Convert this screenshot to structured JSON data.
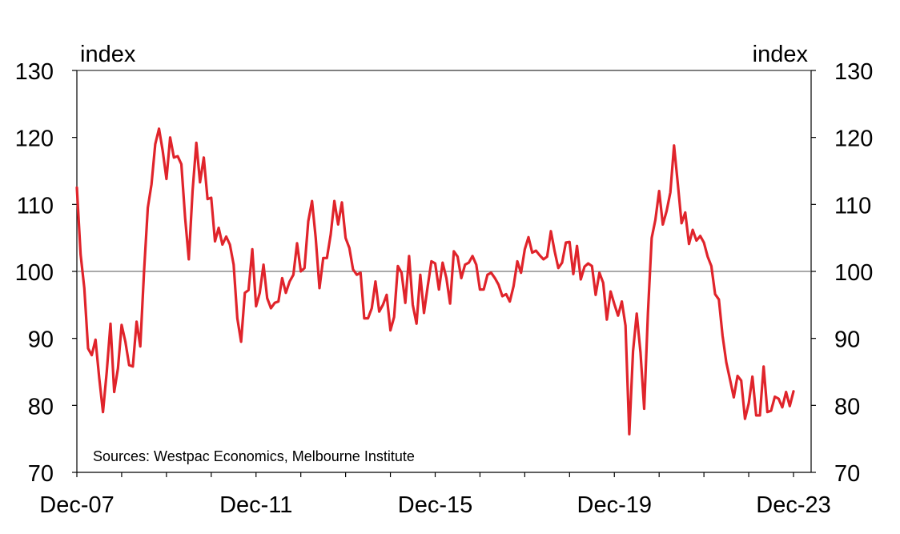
{
  "chart_data": {
    "type": "line",
    "title": "",
    "xlabel": "",
    "ylabel": "index",
    "ylabel_right": "index",
    "ylim": [
      70,
      130
    ],
    "yticks": [
      70,
      80,
      90,
      100,
      110,
      120,
      130
    ],
    "xlim": [
      "2007-12",
      "2023-12"
    ],
    "xticks": [
      {
        "date": "2007-12",
        "label": "Dec-07"
      },
      {
        "date": "2011-12",
        "label": "Dec-11"
      },
      {
        "date": "2015-12",
        "label": "Dec-15"
      },
      {
        "date": "2019-12",
        "label": "Dec-19"
      },
      {
        "date": "2023-12",
        "label": "Dec-23"
      }
    ],
    "reference_line": 100,
    "grid": false,
    "source_note": "Sources: Westpac Economics, Melbourne Institute",
    "colors": {
      "series": "#e0242b",
      "axis": "#000000",
      "reference": "#555555"
    },
    "series": [
      {
        "name": "",
        "points": [
          [
            "2007-12",
            112.5
          ],
          [
            "2008-01",
            102.5
          ],
          [
            "2008-02",
            97.5
          ],
          [
            "2008-03",
            88.5
          ],
          [
            "2008-04",
            87.5
          ],
          [
            "2008-05",
            89.8
          ],
          [
            "2008-06",
            84.0
          ],
          [
            "2008-07",
            79.0
          ],
          [
            "2008-08",
            85.0
          ],
          [
            "2008-09",
            92.2
          ],
          [
            "2008-10",
            82.0
          ],
          [
            "2008-11",
            85.5
          ],
          [
            "2008-12",
            92.0
          ],
          [
            "2009-01",
            89.5
          ],
          [
            "2009-02",
            86.0
          ],
          [
            "2009-03",
            85.8
          ],
          [
            "2009-04",
            92.5
          ],
          [
            "2009-05",
            88.8
          ],
          [
            "2009-06",
            100.0
          ],
          [
            "2009-07",
            109.5
          ],
          [
            "2009-08",
            113.0
          ],
          [
            "2009-09",
            119.0
          ],
          [
            "2009-10",
            121.3
          ],
          [
            "2009-11",
            118.0
          ],
          [
            "2009-12",
            113.8
          ],
          [
            "2010-01",
            120.0
          ],
          [
            "2010-02",
            117.0
          ],
          [
            "2010-03",
            117.2
          ],
          [
            "2010-04",
            116.0
          ],
          [
            "2010-05",
            108.0
          ],
          [
            "2010-06",
            101.8
          ],
          [
            "2010-07",
            112.0
          ],
          [
            "2010-08",
            119.2
          ],
          [
            "2010-09",
            113.3
          ],
          [
            "2010-10",
            117.0
          ],
          [
            "2010-11",
            110.8
          ],
          [
            "2010-12",
            111.0
          ],
          [
            "2011-01",
            104.5
          ],
          [
            "2011-02",
            106.5
          ],
          [
            "2011-03",
            104.0
          ],
          [
            "2011-04",
            105.2
          ],
          [
            "2011-05",
            104.0
          ],
          [
            "2011-06",
            101.0
          ],
          [
            "2011-07",
            93.0
          ],
          [
            "2011-08",
            89.5
          ],
          [
            "2011-09",
            96.8
          ],
          [
            "2011-10",
            97.2
          ],
          [
            "2011-11",
            103.3
          ],
          [
            "2011-12",
            94.8
          ],
          [
            "2012-01",
            96.8
          ],
          [
            "2012-02",
            101.0
          ],
          [
            "2012-03",
            96.0
          ],
          [
            "2012-04",
            94.5
          ],
          [
            "2012-05",
            95.3
          ],
          [
            "2012-06",
            95.5
          ],
          [
            "2012-07",
            99.0
          ],
          [
            "2012-08",
            96.8
          ],
          [
            "2012-09",
            98.5
          ],
          [
            "2012-10",
            99.5
          ],
          [
            "2012-11",
            104.2
          ],
          [
            "2012-12",
            100.0
          ],
          [
            "2013-01",
            100.5
          ],
          [
            "2013-02",
            107.5
          ],
          [
            "2013-03",
            110.5
          ],
          [
            "2013-04",
            105.0
          ],
          [
            "2013-05",
            97.5
          ],
          [
            "2013-06",
            102.0
          ],
          [
            "2013-07",
            102.0
          ],
          [
            "2013-08",
            105.5
          ],
          [
            "2013-09",
            110.5
          ],
          [
            "2013-10",
            107.0
          ],
          [
            "2013-11",
            110.3
          ],
          [
            "2013-12",
            105.0
          ],
          [
            "2014-01",
            103.5
          ],
          [
            "2014-02",
            100.3
          ],
          [
            "2014-03",
            99.5
          ],
          [
            "2014-04",
            99.8
          ],
          [
            "2014-05",
            93.0
          ],
          [
            "2014-06",
            93.0
          ],
          [
            "2014-07",
            94.5
          ],
          [
            "2014-08",
            98.5
          ],
          [
            "2014-09",
            94.0
          ],
          [
            "2014-10",
            95.0
          ],
          [
            "2014-11",
            96.5
          ],
          [
            "2014-12",
            91.2
          ],
          [
            "2015-01",
            93.2
          ],
          [
            "2015-02",
            100.8
          ],
          [
            "2015-03",
            99.8
          ],
          [
            "2015-04",
            95.3
          ],
          [
            "2015-05",
            102.3
          ],
          [
            "2015-06",
            95.0
          ],
          [
            "2015-07",
            92.2
          ],
          [
            "2015-08",
            99.5
          ],
          [
            "2015-09",
            93.8
          ],
          [
            "2015-10",
            97.8
          ],
          [
            "2015-11",
            101.5
          ],
          [
            "2015-12",
            101.2
          ],
          [
            "2016-01",
            97.3
          ],
          [
            "2016-02",
            101.3
          ],
          [
            "2016-03",
            99.0
          ],
          [
            "2016-04",
            95.2
          ],
          [
            "2016-05",
            103.0
          ],
          [
            "2016-06",
            102.2
          ],
          [
            "2016-07",
            99.0
          ],
          [
            "2016-08",
            101.0
          ],
          [
            "2016-09",
            101.3
          ],
          [
            "2016-10",
            102.3
          ],
          [
            "2016-11",
            101.0
          ],
          [
            "2016-12",
            97.3
          ],
          [
            "2017-01",
            97.3
          ],
          [
            "2017-02",
            99.5
          ],
          [
            "2017-03",
            99.8
          ],
          [
            "2017-04",
            99.0
          ],
          [
            "2017-05",
            98.0
          ],
          [
            "2017-06",
            96.3
          ],
          [
            "2017-07",
            96.6
          ],
          [
            "2017-08",
            95.5
          ],
          [
            "2017-09",
            97.8
          ],
          [
            "2017-10",
            101.5
          ],
          [
            "2017-11",
            99.8
          ],
          [
            "2017-12",
            103.3
          ],
          [
            "2018-01",
            105.1
          ],
          [
            "2018-02",
            102.8
          ],
          [
            "2018-03",
            103.1
          ],
          [
            "2018-04",
            102.4
          ],
          [
            "2018-05",
            101.8
          ],
          [
            "2018-06",
            102.2
          ],
          [
            "2018-07",
            106.0
          ],
          [
            "2018-08",
            103.0
          ],
          [
            "2018-09",
            100.5
          ],
          [
            "2018-10",
            101.3
          ],
          [
            "2018-11",
            104.3
          ],
          [
            "2018-12",
            104.4
          ],
          [
            "2019-01",
            99.6
          ],
          [
            "2019-02",
            103.8
          ],
          [
            "2019-03",
            98.8
          ],
          [
            "2019-04",
            100.7
          ],
          [
            "2019-05",
            101.2
          ],
          [
            "2019-06",
            100.8
          ],
          [
            "2019-07",
            96.5
          ],
          [
            "2019-08",
            99.8
          ],
          [
            "2019-09",
            98.3
          ],
          [
            "2019-10",
            92.8
          ],
          [
            "2019-11",
            97.0
          ],
          [
            "2019-12",
            95.1
          ],
          [
            "2020-01",
            93.4
          ],
          [
            "2020-02",
            95.5
          ],
          [
            "2020-03",
            91.9
          ],
          [
            "2020-04",
            75.7
          ],
          [
            "2020-05",
            88.1
          ],
          [
            "2020-06",
            93.7
          ],
          [
            "2020-07",
            87.9
          ],
          [
            "2020-08",
            79.5
          ],
          [
            "2020-09",
            93.8
          ],
          [
            "2020-10",
            105.0
          ],
          [
            "2020-11",
            107.7
          ],
          [
            "2020-12",
            112.0
          ],
          [
            "2021-01",
            107.0
          ],
          [
            "2021-02",
            109.0
          ],
          [
            "2021-03",
            111.8
          ],
          [
            "2021-04",
            118.8
          ],
          [
            "2021-05",
            113.1
          ],
          [
            "2021-06",
            107.2
          ],
          [
            "2021-07",
            108.8
          ],
          [
            "2021-08",
            104.1
          ],
          [
            "2021-09",
            106.2
          ],
          [
            "2021-10",
            104.6
          ],
          [
            "2021-11",
            105.3
          ],
          [
            "2021-12",
            104.3
          ],
          [
            "2022-01",
            102.2
          ],
          [
            "2022-02",
            100.8
          ],
          [
            "2022-03",
            96.6
          ],
          [
            "2022-04",
            95.8
          ],
          [
            "2022-05",
            90.4
          ],
          [
            "2022-06",
            86.4
          ],
          [
            "2022-07",
            83.8
          ],
          [
            "2022-08",
            81.2
          ],
          [
            "2022-09",
            84.4
          ],
          [
            "2022-10",
            83.7
          ],
          [
            "2022-11",
            78.0
          ],
          [
            "2022-12",
            80.3
          ],
          [
            "2023-01",
            84.3
          ],
          [
            "2023-02",
            78.5
          ],
          [
            "2023-03",
            78.5
          ],
          [
            "2023-04",
            85.8
          ],
          [
            "2023-05",
            79.0
          ],
          [
            "2023-06",
            79.2
          ],
          [
            "2023-07",
            81.3
          ],
          [
            "2023-08",
            81.0
          ],
          [
            "2023-09",
            79.7
          ],
          [
            "2023-10",
            82.0
          ],
          [
            "2023-11",
            79.9
          ],
          [
            "2023-12",
            82.1
          ]
        ]
      }
    ]
  }
}
